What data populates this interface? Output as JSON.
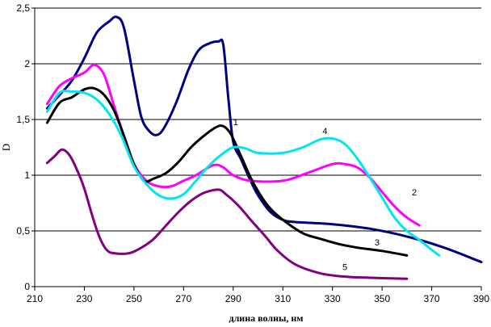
{
  "chart_data": {
    "type": "line",
    "title": "",
    "xlabel": "длина волны, нм",
    "ylabel": "D",
    "xlim": [
      210,
      390
    ],
    "ylim": [
      0,
      2.5
    ],
    "x_ticks": [
      "210",
      "230",
      "250",
      "270",
      "290",
      "310",
      "330",
      "350",
      "370",
      "390"
    ],
    "y_ticks": [
      "0",
      "0,5",
      "1",
      "1,5",
      "2",
      "2,5"
    ],
    "grid": "horizontal",
    "legend": "none",
    "series": [
      {
        "name": "1",
        "color": "#000080",
        "points": [
          [
            215,
            1.6
          ],
          [
            220,
            1.72
          ],
          [
            225,
            1.85
          ],
          [
            230,
            2.05
          ],
          [
            235,
            2.28
          ],
          [
            240,
            2.38
          ],
          [
            243,
            2.42
          ],
          [
            246,
            2.32
          ],
          [
            250,
            1.85
          ],
          [
            253,
            1.52
          ],
          [
            256,
            1.4
          ],
          [
            259,
            1.36
          ],
          [
            262,
            1.42
          ],
          [
            267,
            1.65
          ],
          [
            272,
            1.95
          ],
          [
            276,
            2.12
          ],
          [
            280,
            2.18
          ],
          [
            284,
            2.2
          ],
          [
            286,
            2.17
          ],
          [
            288,
            1.7
          ],
          [
            290,
            1.3
          ],
          [
            293,
            1.15
          ],
          [
            297,
            0.95
          ],
          [
            300,
            0.82
          ],
          [
            305,
            0.67
          ],
          [
            310,
            0.6
          ],
          [
            315,
            0.58
          ],
          [
            330,
            0.56
          ],
          [
            345,
            0.52
          ],
          [
            360,
            0.45
          ],
          [
            375,
            0.35
          ],
          [
            390,
            0.22
          ]
        ]
      },
      {
        "name": "2",
        "color": "#ff00ff",
        "points": [
          [
            215,
            1.64
          ],
          [
            220,
            1.8
          ],
          [
            225,
            1.87
          ],
          [
            230,
            1.92
          ],
          [
            234,
            1.99
          ],
          [
            238,
            1.9
          ],
          [
            242,
            1.62
          ],
          [
            246,
            1.35
          ],
          [
            250,
            1.1
          ],
          [
            255,
            0.95
          ],
          [
            260,
            0.9
          ],
          [
            265,
            0.9
          ],
          [
            270,
            0.95
          ],
          [
            275,
            1.0
          ],
          [
            282,
            1.09
          ],
          [
            286,
            1.07
          ],
          [
            290,
            1.0
          ],
          [
            297,
            0.95
          ],
          [
            310,
            0.95
          ],
          [
            320,
            1.02
          ],
          [
            330,
            1.1
          ],
          [
            335,
            1.1
          ],
          [
            340,
            1.07
          ],
          [
            345,
            0.98
          ],
          [
            350,
            0.85
          ],
          [
            355,
            0.72
          ],
          [
            360,
            0.62
          ],
          [
            365,
            0.55
          ]
        ]
      },
      {
        "name": "3",
        "color": "#000000",
        "points": [
          [
            215,
            1.47
          ],
          [
            220,
            1.65
          ],
          [
            225,
            1.7
          ],
          [
            230,
            1.77
          ],
          [
            234,
            1.78
          ],
          [
            238,
            1.72
          ],
          [
            242,
            1.58
          ],
          [
            246,
            1.35
          ],
          [
            250,
            1.1
          ],
          [
            254,
            0.95
          ],
          [
            258,
            0.97
          ],
          [
            263,
            1.02
          ],
          [
            268,
            1.12
          ],
          [
            273,
            1.25
          ],
          [
            278,
            1.35
          ],
          [
            283,
            1.43
          ],
          [
            286,
            1.44
          ],
          [
            289,
            1.37
          ],
          [
            293,
            1.18
          ],
          [
            297,
            0.98
          ],
          [
            301,
            0.82
          ],
          [
            305,
            0.7
          ],
          [
            310,
            0.6
          ],
          [
            318,
            0.48
          ],
          [
            325,
            0.43
          ],
          [
            333,
            0.38
          ],
          [
            340,
            0.35
          ],
          [
            350,
            0.32
          ],
          [
            360,
            0.28
          ]
        ]
      },
      {
        "name": "4",
        "color": "#00e5ee",
        "points": [
          [
            215,
            1.57
          ],
          [
            220,
            1.74
          ],
          [
            225,
            1.75
          ],
          [
            230,
            1.74
          ],
          [
            235,
            1.68
          ],
          [
            240,
            1.55
          ],
          [
            245,
            1.35
          ],
          [
            250,
            1.08
          ],
          [
            255,
            0.92
          ],
          [
            260,
            0.82
          ],
          [
            265,
            0.79
          ],
          [
            270,
            0.83
          ],
          [
            275,
            0.95
          ],
          [
            280,
            1.08
          ],
          [
            285,
            1.18
          ],
          [
            290,
            1.25
          ],
          [
            295,
            1.24
          ],
          [
            300,
            1.2
          ],
          [
            310,
            1.2
          ],
          [
            318,
            1.25
          ],
          [
            325,
            1.32
          ],
          [
            330,
            1.33
          ],
          [
            335,
            1.28
          ],
          [
            340,
            1.15
          ],
          [
            345,
            0.98
          ],
          [
            350,
            0.8
          ],
          [
            355,
            0.62
          ],
          [
            360,
            0.5
          ],
          [
            365,
            0.42
          ],
          [
            370,
            0.33
          ],
          [
            373,
            0.28
          ]
        ]
      },
      {
        "name": "5",
        "color": "#800080",
        "points": [
          [
            215,
            1.11
          ],
          [
            218,
            1.17
          ],
          [
            221,
            1.23
          ],
          [
            224,
            1.18
          ],
          [
            227,
            1.05
          ],
          [
            230,
            0.88
          ],
          [
            233,
            0.65
          ],
          [
            236,
            0.45
          ],
          [
            239,
            0.33
          ],
          [
            242,
            0.3
          ],
          [
            248,
            0.3
          ],
          [
            253,
            0.35
          ],
          [
            258,
            0.43
          ],
          [
            263,
            0.55
          ],
          [
            268,
            0.67
          ],
          [
            273,
            0.77
          ],
          [
            278,
            0.84
          ],
          [
            284,
            0.87
          ],
          [
            287,
            0.83
          ],
          [
            292,
            0.73
          ],
          [
            297,
            0.6
          ],
          [
            303,
            0.45
          ],
          [
            308,
            0.32
          ],
          [
            315,
            0.2
          ],
          [
            325,
            0.12
          ],
          [
            335,
            0.09
          ],
          [
            345,
            0.08
          ],
          [
            360,
            0.07
          ]
        ]
      }
    ],
    "annotations": [
      {
        "text": "1",
        "x": 291,
        "y": 1.45
      },
      {
        "text": "2",
        "x": 363,
        "y": 0.82
      },
      {
        "text": "3",
        "x": 348,
        "y": 0.37
      },
      {
        "text": "4",
        "x": 327,
        "y": 1.37
      },
      {
        "text": "5",
        "x": 335,
        "y": 0.15
      }
    ]
  }
}
